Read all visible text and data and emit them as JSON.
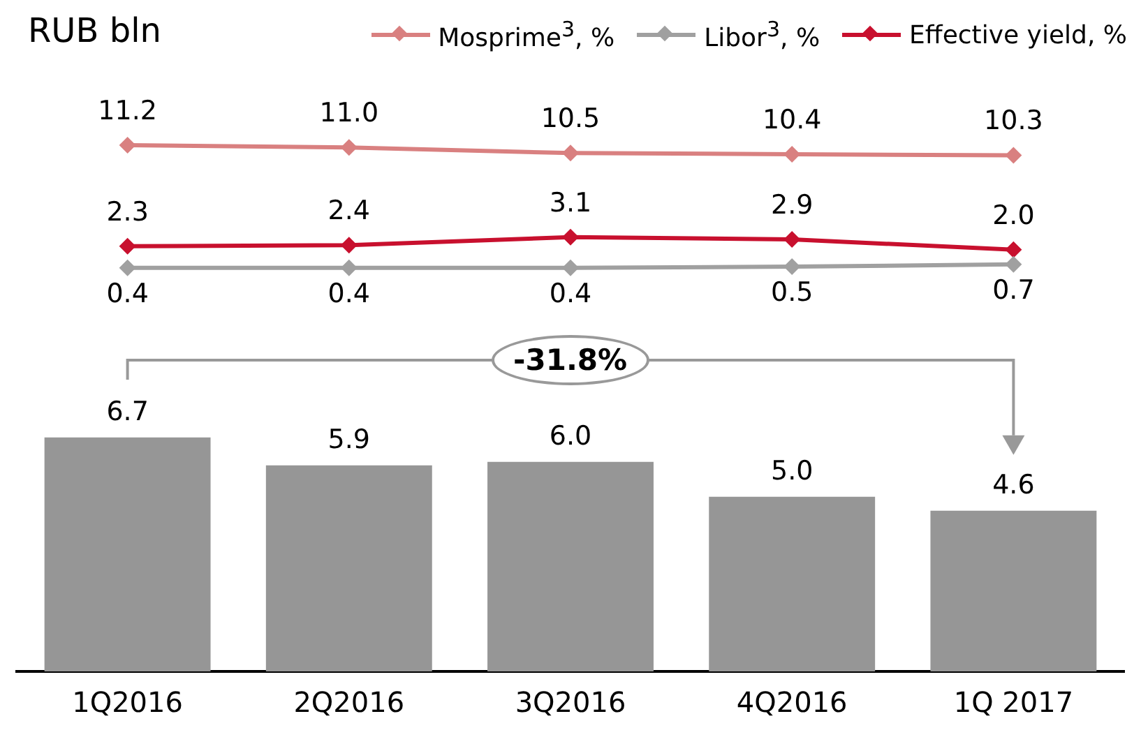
{
  "chart_data": [
    {
      "type": "line",
      "categories": [
        null,
        null,
        null,
        null,
        null
      ],
      "legend": "top right",
      "marker": "diamond",
      "grid": false,
      "tick_labels": false,
      "series": [
        {
          "name": "Mosprime$^{3}$, %",
          "color": "#d98080",
          "values": [
            11.2,
            11.0,
            10.5,
            10.4,
            10.3
          ],
          "value_labels": [
            "11.2",
            "11.0",
            "10.5",
            "10.4",
            "10.3"
          ]
        },
        {
          "name": "Libor$^{3}$, %",
          "color": "#a0a0a0",
          "values": [
            0.4,
            0.4,
            0.4,
            0.5,
            0.7
          ],
          "value_labels": [
            "0.4",
            "0.4",
            "0.4",
            "0.5",
            "0.7"
          ]
        },
        {
          "name": "Effective yield, %",
          "color": "#c8102e",
          "values": [
            2.3,
            2.4,
            3.1,
            2.9,
            2.0
          ],
          "value_labels": [
            "2.3",
            "2.4",
            "3.1",
            "2.9",
            "2.0"
          ]
        }
      ]
    },
    {
      "type": "bar",
      "categories": [
        "1Q2016",
        "2Q2016",
        "3Q2016",
        "4Q2016",
        "1Q 2017"
      ],
      "grid": false,
      "tick_labels": "x",
      "annotations": [
        "RUB bln",
        "-31.8%"
      ],
      "series": [
        {
          "color": "#969696",
          "values": [
            6.7,
            5.9,
            6.0,
            5.0,
            4.6
          ],
          "value_labels": [
            "6.7",
            "5.9",
            "6.0",
            "5.0",
            "4.6"
          ]
        }
      ]
    }
  ]
}
